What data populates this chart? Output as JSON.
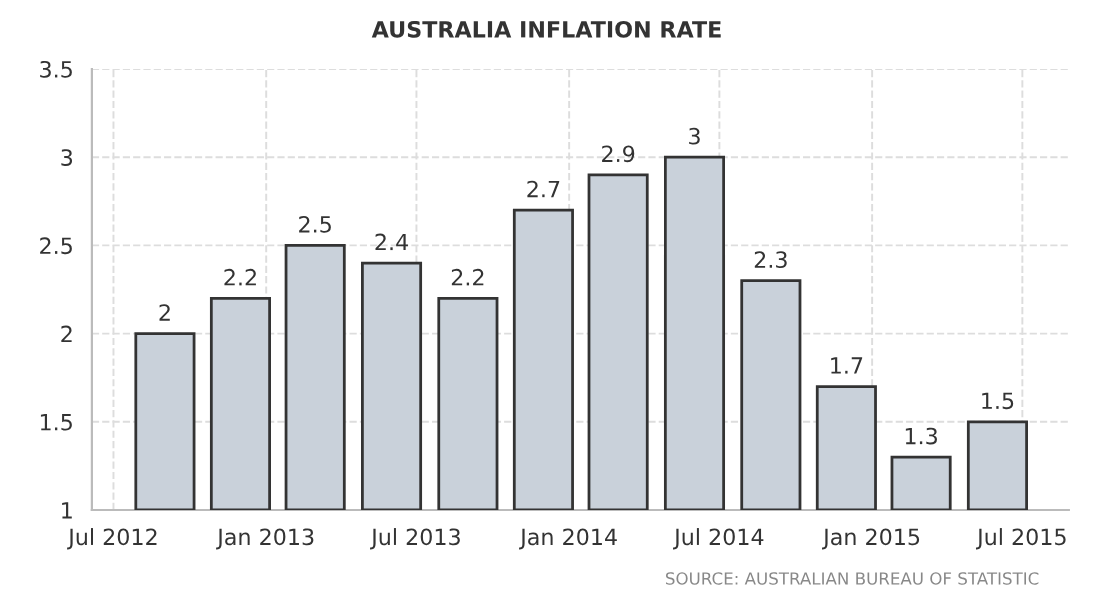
{
  "chart_data": {
    "type": "bar",
    "title": "AUSTRALIA INFLATION RATE",
    "x": [
      "2012-09",
      "2012-12",
      "2013-03",
      "2013-06",
      "2013-09",
      "2013-12",
      "2014-03",
      "2014-06",
      "2014-09",
      "2014-12",
      "2015-03",
      "2015-06"
    ],
    "values": [
      2,
      2.2,
      2.5,
      2.4,
      2.2,
      2.7,
      2.9,
      3,
      2.3,
      1.7,
      1.3,
      1.5
    ],
    "color": "#c9d1da",
    "data_labels": true,
    "ylim": [
      1,
      3.5
    ],
    "yticks": [
      1,
      1.5,
      2,
      2.5,
      3,
      3.5
    ],
    "xlim": [
      "2012-06-05",
      "2015-08-26"
    ],
    "xticks": [
      {
        "value": "2012-07",
        "label": "Jul 2012"
      },
      {
        "value": "2013-01",
        "label": "Jan 2013"
      },
      {
        "value": "2013-07",
        "label": "Jul 2013"
      },
      {
        "value": "2014-01",
        "label": "Jan 2014"
      },
      {
        "value": "2014-07",
        "label": "Jul 2014"
      },
      {
        "value": "2015-01",
        "label": "Jan 2015"
      },
      {
        "value": "2015-07",
        "label": "Jul 2015"
      }
    ],
    "grid": true,
    "annotations": [
      "SOURCE: AUSTRALIAN BUREAU OF STATISTIC"
    ]
  }
}
